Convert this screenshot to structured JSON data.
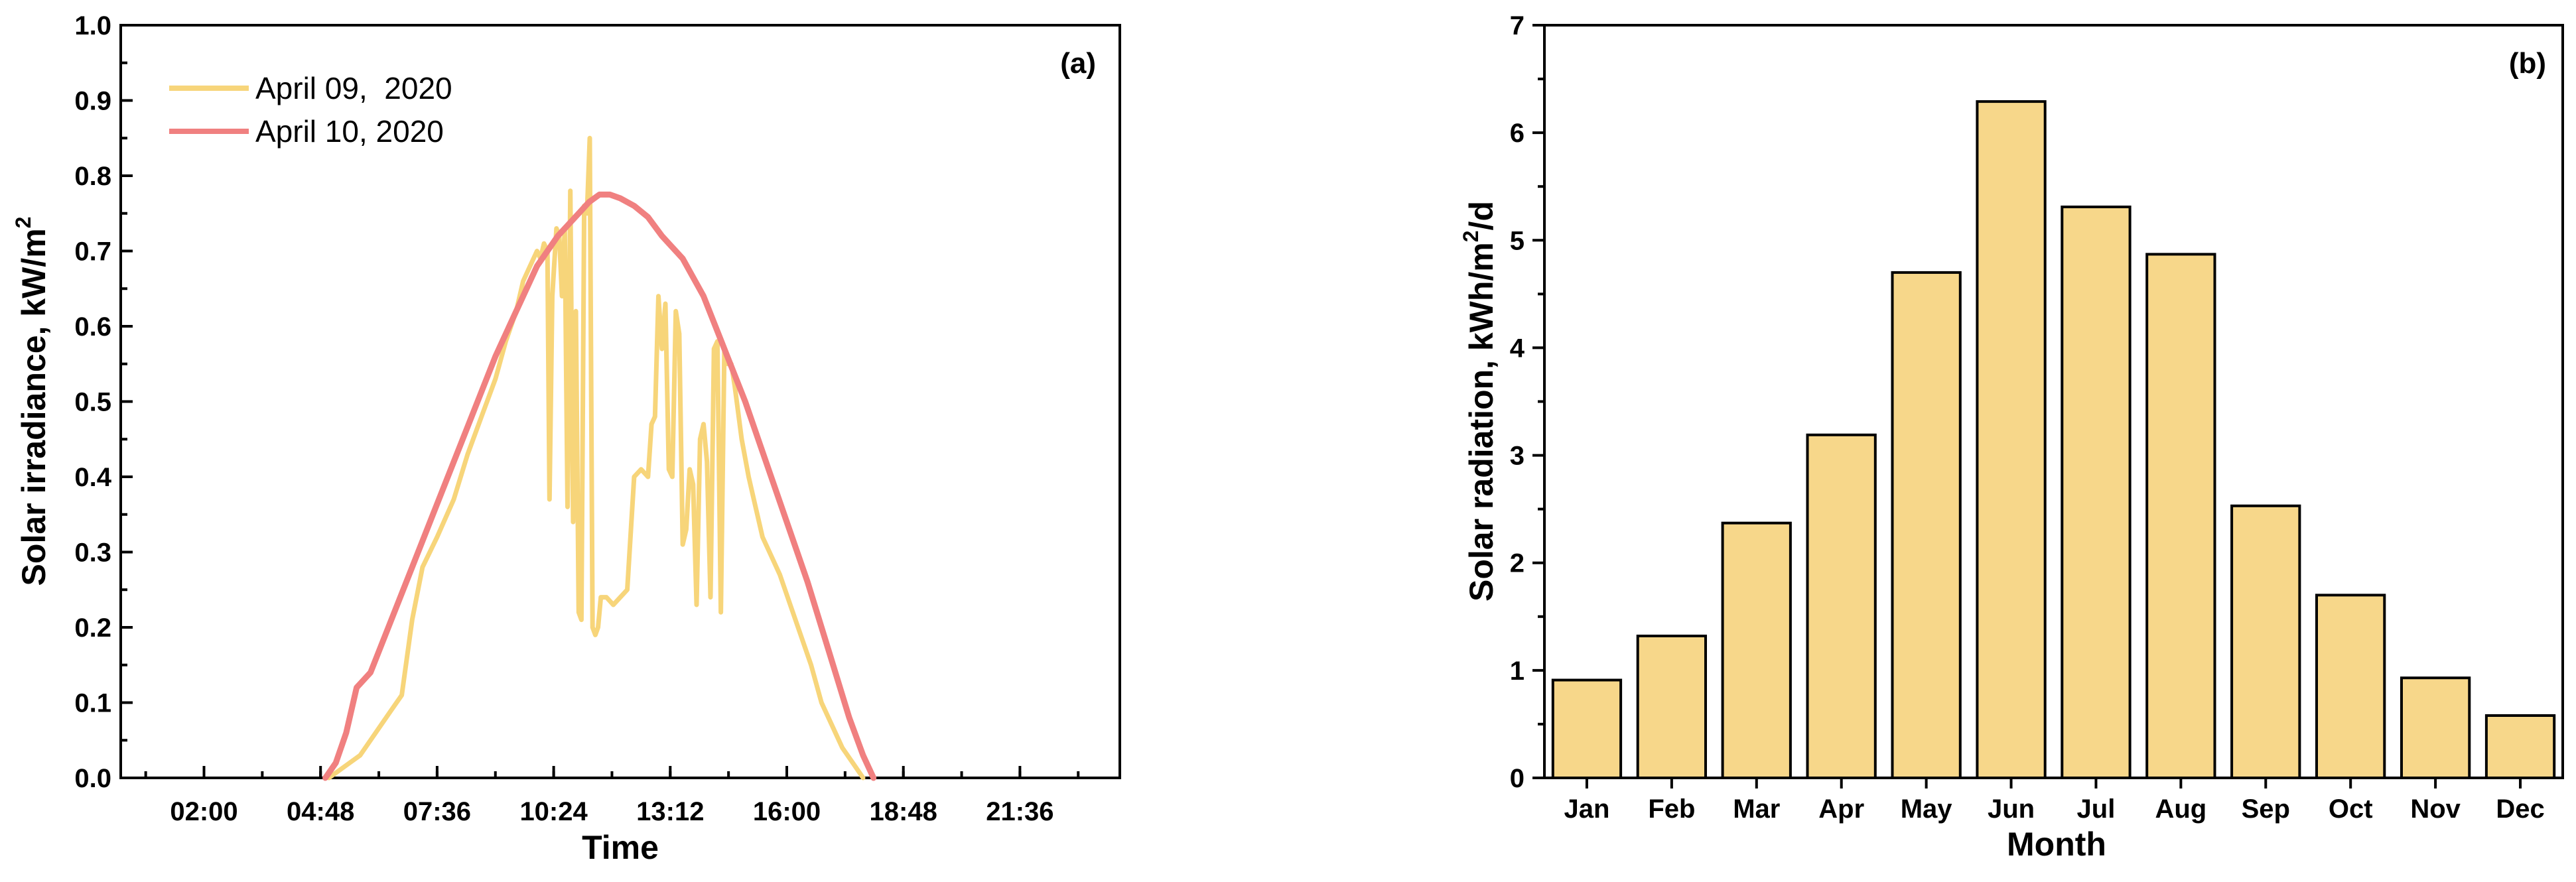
{
  "chart_data": [
    {
      "type": "line",
      "panel_label": "(a)",
      "xlabel": "Time",
      "ylabel": "Solar irradiance, kW/m",
      "ylabel_sup": "2",
      "ylim": [
        0.0,
        1.0
      ],
      "yticks": [
        "0.0",
        "0.1",
        "0.2",
        "0.3",
        "0.4",
        "0.5",
        "0.6",
        "0.7",
        "0.8",
        "0.9",
        "1.0"
      ],
      "xticks": [
        "02:00",
        "04:48",
        "07:36",
        "10:24",
        "13:12",
        "16:00",
        "18:48",
        "21:36"
      ],
      "xlim": [
        "00:00",
        "24:00"
      ],
      "grid": false,
      "legend_position": "top-left",
      "series": [
        {
          "name": "April 09,  2020",
          "color": "#F7D57A",
          "points": [
            [
              "05:00",
              0.0
            ],
            [
              "05:15",
              0.01
            ],
            [
              "05:30",
              0.02
            ],
            [
              "05:45",
              0.03
            ],
            [
              "06:00",
              0.05
            ],
            [
              "06:15",
              0.07
            ],
            [
              "06:30",
              0.09
            ],
            [
              "06:45",
              0.11
            ],
            [
              "07:00",
              0.21
            ],
            [
              "07:15",
              0.28
            ],
            [
              "07:36",
              0.32
            ],
            [
              "08:00",
              0.37
            ],
            [
              "08:20",
              0.43
            ],
            [
              "08:40",
              0.48
            ],
            [
              "09:00",
              0.53
            ],
            [
              "09:15",
              0.58
            ],
            [
              "09:30",
              0.62
            ],
            [
              "09:40",
              0.66
            ],
            [
              "09:50",
              0.68
            ],
            [
              "10:00",
              0.7
            ],
            [
              "10:05",
              0.69
            ],
            [
              "10:10",
              0.71
            ],
            [
              "10:15",
              0.7
            ],
            [
              "10:18",
              0.37
            ],
            [
              "10:22",
              0.64
            ],
            [
              "10:28",
              0.73
            ],
            [
              "10:32",
              0.72
            ],
            [
              "10:36",
              0.64
            ],
            [
              "10:40",
              0.73
            ],
            [
              "10:44",
              0.36
            ],
            [
              "10:48",
              0.78
            ],
            [
              "10:52",
              0.34
            ],
            [
              "10:56",
              0.62
            ],
            [
              "11:00",
              0.22
            ],
            [
              "11:04",
              0.21
            ],
            [
              "11:08",
              0.76
            ],
            [
              "11:12",
              0.75
            ],
            [
              "11:16",
              0.85
            ],
            [
              "11:20",
              0.2
            ],
            [
              "11:24",
              0.19
            ],
            [
              "11:28",
              0.2
            ],
            [
              "11:32",
              0.24
            ],
            [
              "11:40",
              0.24
            ],
            [
              "11:50",
              0.23
            ],
            [
              "12:00",
              0.24
            ],
            [
              "12:10",
              0.25
            ],
            [
              "12:20",
              0.4
            ],
            [
              "12:30",
              0.41
            ],
            [
              "12:40",
              0.4
            ],
            [
              "12:45",
              0.47
            ],
            [
              "12:50",
              0.48
            ],
            [
              "12:55",
              0.64
            ],
            [
              "13:00",
              0.57
            ],
            [
              "13:05",
              0.63
            ],
            [
              "13:10",
              0.41
            ],
            [
              "13:15",
              0.4
            ],
            [
              "13:20",
              0.62
            ],
            [
              "13:25",
              0.59
            ],
            [
              "13:30",
              0.31
            ],
            [
              "13:35",
              0.33
            ],
            [
              "13:40",
              0.41
            ],
            [
              "13:45",
              0.39
            ],
            [
              "13:50",
              0.23
            ],
            [
              "13:55",
              0.45
            ],
            [
              "14:00",
              0.47
            ],
            [
              "14:05",
              0.42
            ],
            [
              "14:10",
              0.24
            ],
            [
              "14:15",
              0.57
            ],
            [
              "14:20",
              0.58
            ],
            [
              "14:25",
              0.22
            ],
            [
              "14:30",
              0.57
            ],
            [
              "14:35",
              0.55
            ],
            [
              "14:40",
              0.55
            ],
            [
              "14:45",
              0.52
            ],
            [
              "14:55",
              0.45
            ],
            [
              "15:05",
              0.4
            ],
            [
              "15:15",
              0.36
            ],
            [
              "15:25",
              0.32
            ],
            [
              "15:35",
              0.3
            ],
            [
              "15:50",
              0.27
            ],
            [
              "16:05",
              0.23
            ],
            [
              "16:20",
              0.19
            ],
            [
              "16:35",
              0.15
            ],
            [
              "16:50",
              0.1
            ],
            [
              "17:05",
              0.07
            ],
            [
              "17:20",
              0.04
            ],
            [
              "17:35",
              0.02
            ],
            [
              "17:50",
              0.0
            ]
          ]
        },
        {
          "name": "April 10, 2020",
          "color": "#F08080",
          "points": [
            [
              "04:55",
              0.0
            ],
            [
              "05:10",
              0.02
            ],
            [
              "05:25",
              0.06
            ],
            [
              "05:40",
              0.12
            ],
            [
              "05:50",
              0.13
            ],
            [
              "06:00",
              0.14
            ],
            [
              "06:30",
              0.21
            ],
            [
              "07:00",
              0.28
            ],
            [
              "07:30",
              0.35
            ],
            [
              "08:00",
              0.42
            ],
            [
              "08:30",
              0.49
            ],
            [
              "09:00",
              0.56
            ],
            [
              "09:30",
              0.62
            ],
            [
              "10:00",
              0.68
            ],
            [
              "10:30",
              0.72
            ],
            [
              "11:00",
              0.75
            ],
            [
              "11:15",
              0.765
            ],
            [
              "11:30",
              0.775
            ],
            [
              "11:45",
              0.775
            ],
            [
              "12:00",
              0.77
            ],
            [
              "12:20",
              0.76
            ],
            [
              "12:40",
              0.745
            ],
            [
              "13:00",
              0.72
            ],
            [
              "13:30",
              0.69
            ],
            [
              "14:00",
              0.64
            ],
            [
              "14:30",
              0.57
            ],
            [
              "15:00",
              0.5
            ],
            [
              "15:30",
              0.42
            ],
            [
              "16:00",
              0.34
            ],
            [
              "16:30",
              0.26
            ],
            [
              "17:00",
              0.17
            ],
            [
              "17:30",
              0.08
            ],
            [
              "17:50",
              0.03
            ],
            [
              "18:05",
              0.0
            ]
          ]
        }
      ]
    },
    {
      "type": "bar",
      "panel_label": "(b)",
      "xlabel": "Month",
      "ylabel": "Solar radiation, kWh/m",
      "ylabel_sup": "2",
      "ylabel_suffix": "/d",
      "ylim": [
        0,
        7
      ],
      "yticks": [
        "0",
        "1",
        "2",
        "3",
        "4",
        "5",
        "6",
        "7"
      ],
      "grid": false,
      "bar_color": "#F7D78A",
      "categories": [
        "Jan",
        "Feb",
        "Mar",
        "Apr",
        "May",
        "Jun",
        "Jul",
        "Aug",
        "Sep",
        "Oct",
        "Nov",
        "Dec"
      ],
      "values": [
        0.91,
        1.32,
        2.37,
        3.19,
        4.7,
        6.29,
        5.31,
        4.87,
        2.53,
        1.7,
        0.93,
        0.58
      ]
    }
  ]
}
